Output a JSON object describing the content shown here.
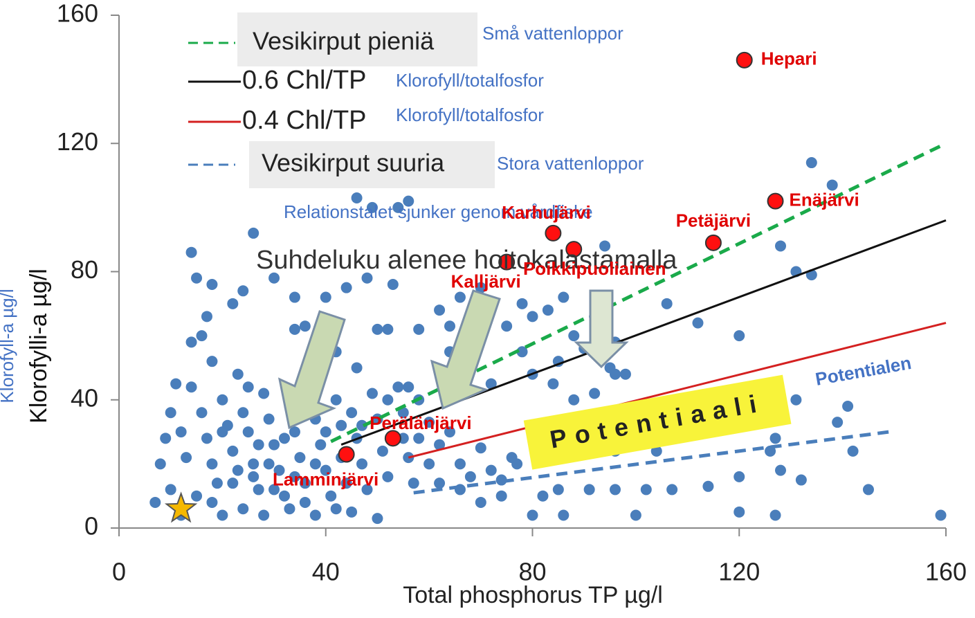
{
  "chart_data": {
    "type": "scatter",
    "xlabel": "Total phosphorus TP µg/l",
    "ylabel": "Klorofylli-a µg/l",
    "ylabel_translation": "Klorofyll-a µg/l",
    "xlim": [
      0,
      160
    ],
    "ylim": [
      0,
      160
    ],
    "xticks": [
      0,
      40,
      80,
      120,
      160
    ],
    "yticks": [
      0,
      40,
      80,
      120,
      160
    ],
    "points": {
      "color": "#4a7ebb",
      "x": [
        14,
        15,
        18,
        17,
        16,
        14,
        24,
        22,
        26,
        30,
        34,
        36,
        40,
        44,
        48,
        49,
        54,
        53,
        50,
        52,
        46,
        42,
        38,
        34,
        46,
        56,
        58,
        62,
        64,
        66,
        70,
        72,
        75,
        78,
        80,
        83,
        86,
        88,
        92,
        96,
        98,
        95,
        90,
        85,
        80,
        78,
        94,
        106,
        112,
        120,
        131,
        134,
        134,
        138,
        128,
        141,
        142,
        145,
        139,
        131,
        127,
        126,
        132,
        128,
        120,
        114,
        120,
        127,
        159,
        107,
        102,
        96,
        91,
        85,
        82,
        80,
        86,
        100,
        77,
        74,
        70,
        66,
        62,
        60,
        58,
        56,
        64,
        67,
        72,
        84,
        88,
        92,
        96,
        106,
        108,
        112,
        104,
        96,
        90,
        100,
        8,
        9,
        10,
        11,
        12,
        13,
        14,
        16,
        17,
        18,
        19,
        20,
        21,
        22,
        23,
        24,
        25,
        26,
        27,
        28,
        29,
        30,
        31,
        32,
        33,
        34,
        35,
        36,
        37,
        38,
        39,
        40,
        41,
        42,
        43,
        44,
        45,
        46,
        47,
        48,
        49,
        50,
        51,
        52,
        50,
        54,
        55,
        56,
        57,
        58,
        60,
        62,
        64,
        66,
        68,
        70,
        72,
        74,
        76,
        7,
        10,
        12,
        15,
        18,
        20,
        22,
        24,
        26,
        28,
        30,
        33,
        36,
        38,
        42,
        45,
        18,
        20,
        23,
        25,
        27,
        29,
        32,
        34,
        36,
        38,
        40,
        43,
        47,
        52,
        55
      ],
      "y": [
        86,
        78,
        76,
        66,
        60,
        58,
        74,
        70,
        92,
        78,
        72,
        63,
        72,
        75,
        78,
        100,
        100,
        76,
        62,
        62,
        50,
        55,
        58,
        62,
        103,
        102,
        62,
        68,
        63,
        72,
        75,
        70,
        63,
        70,
        66,
        68,
        72,
        60,
        66,
        58,
        48,
        50,
        56,
        52,
        48,
        55,
        88,
        70,
        64,
        60,
        80,
        79,
        114,
        107,
        88,
        38,
        24,
        12,
        33,
        40,
        28,
        24,
        15,
        18,
        16,
        13,
        5,
        4,
        4,
        12,
        12,
        12,
        12,
        12,
        10,
        4,
        4,
        4,
        20,
        15,
        25,
        20,
        14,
        33,
        40,
        44,
        55,
        50,
        45,
        45,
        40,
        42,
        48,
        36,
        34,
        30,
        24,
        24,
        26,
        32,
        20,
        28,
        36,
        45,
        30,
        22,
        44,
        36,
        28,
        20,
        14,
        40,
        32,
        24,
        48,
        36,
        30,
        20,
        12,
        42,
        34,
        26,
        18,
        10,
        38,
        30,
        22,
        14,
        46,
        34,
        26,
        18,
        10,
        40,
        32,
        14,
        36,
        28,
        20,
        12,
        42,
        34,
        24,
        16,
        3,
        44,
        36,
        22,
        14,
        28,
        20,
        26,
        30,
        12,
        16,
        8,
        18,
        10,
        22,
        8,
        12,
        4,
        10,
        8,
        4,
        14,
        6,
        16,
        4,
        12,
        6,
        8,
        4,
        6,
        5,
        52,
        30,
        18,
        44,
        26,
        20,
        28,
        16,
        36,
        20,
        30,
        22,
        32,
        40,
        28
      ]
    },
    "lines": [
      {
        "name": "Vesikirput  pieniä",
        "translation": "Små vattenloppor",
        "color": "#1aaa4a",
        "dash": true,
        "x": [
          41,
          160
        ],
        "y": [
          27,
          120
        ]
      },
      {
        "name": "0.6 Chl/TP",
        "translation": "Klorofyll/totalfosfor",
        "color": "#111111",
        "dash": false,
        "x": [
          43,
          160
        ],
        "y": [
          26,
          96
        ]
      },
      {
        "name": "0.4 Chl/TP",
        "translation": "Klorofyll/totalfosfor",
        "color": "#d42020",
        "dash": false,
        "x": [
          56,
          160
        ],
        "y": [
          22,
          64
        ]
      },
      {
        "name": "Vesikirput  suuria",
        "translation": "Stora vattenloppor",
        "color": "#4a7ebb",
        "dash": true,
        "x": [
          57,
          149
        ],
        "y": [
          11,
          30
        ]
      }
    ],
    "lakes": [
      {
        "name": "Hepari",
        "x": 121,
        "y": 146
      },
      {
        "name": "Enäjärvi",
        "x": 127,
        "y": 102
      },
      {
        "name": "Petäjärvi",
        "x": 115,
        "y": 89
      },
      {
        "name": "Karhujärvi",
        "x": 84,
        "y": 92
      },
      {
        "name": "Poikkipuoliainen",
        "x": 88,
        "y": 87
      },
      {
        "name": "Kalljärvi",
        "x": 75,
        "y": 83
      },
      {
        "name": "Perälänjärvi",
        "x": 53,
        "y": 28
      },
      {
        "name": "Lamminjärvi",
        "x": 44,
        "y": 23
      }
    ],
    "star": {
      "x": 12,
      "y": 6,
      "color": "#f5b800"
    },
    "annotation": "Suhdeluku alenee hoitokalastamalla",
    "annotation_translation": "Relationstalet sjunker genom vårdfiske",
    "potential": "Potentiaali",
    "potential_translation": "Potentialen"
  }
}
